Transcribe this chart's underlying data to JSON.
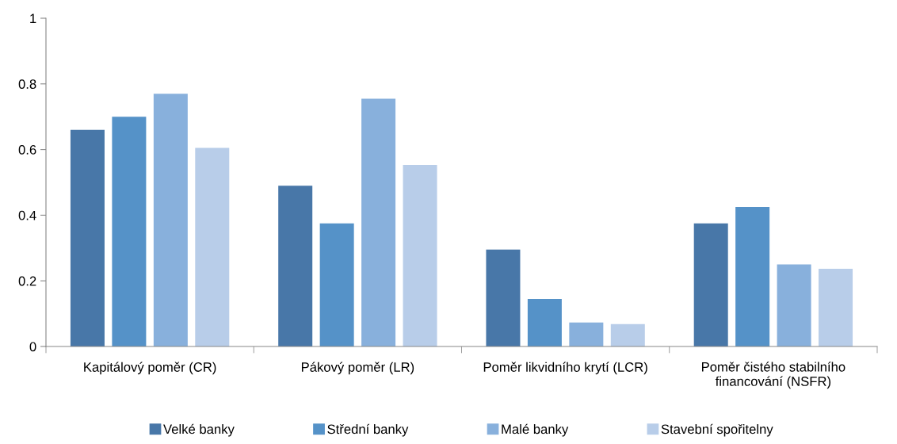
{
  "chart_data": {
    "type": "bar",
    "categories": [
      "Kapitálový poměr (CR)",
      "Pákový poměr (LR)",
      "Poměr likvidního krytí (LCR)",
      "Poměr čistého stabilního\nfinancování (NSFR)"
    ],
    "series": [
      {
        "name": "Velké banky",
        "color": "#4877a8",
        "values": [
          0.66,
          0.49,
          0.295,
          0.375
        ]
      },
      {
        "name": "Střední banky",
        "color": "#5592c8",
        "values": [
          0.7,
          0.375,
          0.145,
          0.425
        ]
      },
      {
        "name": "Malé banky",
        "color": "#88b0dc",
        "values": [
          0.77,
          0.755,
          0.073,
          0.25
        ]
      },
      {
        "name": "Stavební spořitelny",
        "color": "#b8cde9",
        "values": [
          0.605,
          0.553,
          0.068,
          0.237
        ]
      }
    ],
    "ylim": [
      0,
      1
    ],
    "yticks": [
      0,
      0.2,
      0.4,
      0.6,
      0.8,
      1
    ],
    "grid": false,
    "legend": "bottom"
  }
}
